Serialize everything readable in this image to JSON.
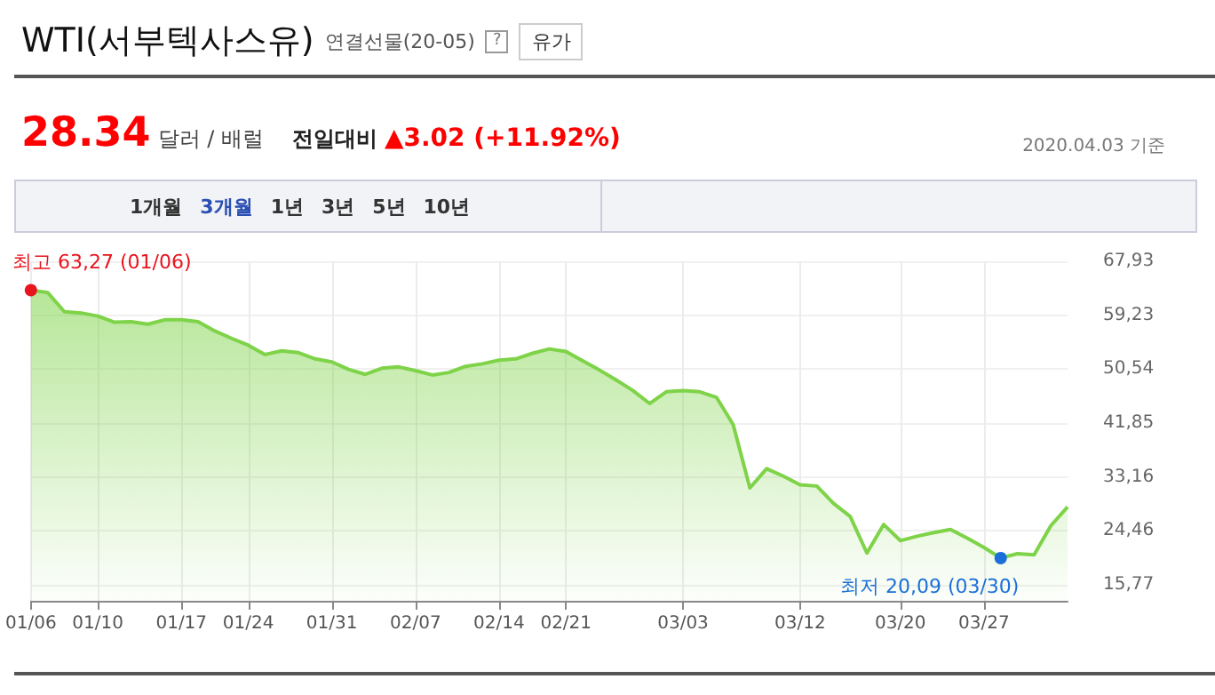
{
  "chart_data": {
    "type": "area",
    "title": "WTI(서부텍사스유)",
    "subtitle": "연결선물(20-05)",
    "categories": [
      "01/06",
      null,
      null,
      null,
      "01/10",
      null,
      null,
      null,
      null,
      "01/17",
      null,
      null,
      null,
      "01/24",
      null,
      null,
      null,
      null,
      "01/31",
      null,
      null,
      null,
      null,
      "02/07",
      null,
      null,
      null,
      null,
      "02/14",
      null,
      null,
      null,
      "02/21",
      null,
      null,
      null,
      null,
      null,
      null,
      "03/03",
      null,
      null,
      null,
      null,
      null,
      null,
      "03/12",
      null,
      null,
      null,
      null,
      null,
      "03/20",
      null,
      null,
      null,
      null,
      "03/27",
      null,
      null,
      null,
      null,
      null
    ],
    "series": [
      {
        "color": "#7ed348",
        "values": [
          63.27,
          62.9,
          59.8,
          59.6,
          59.1,
          58.1,
          58.2,
          57.8,
          58.5,
          58.5,
          58.2,
          56.7,
          55.5,
          54.4,
          52.9,
          53.5,
          53.2,
          52.2,
          51.7,
          50.5,
          49.7,
          50.7,
          50.9,
          50.3,
          49.6,
          50.0,
          51.0,
          51.4,
          52.0,
          52.2,
          53.1,
          53.8,
          53.4,
          51.9,
          50.4,
          48.8,
          47.1,
          45.0,
          46.9,
          47.1,
          46.9,
          46.0,
          41.6,
          31.4,
          34.5,
          33.3,
          31.9,
          31.7,
          28.9,
          26.8,
          20.9,
          25.5,
          22.9,
          23.6,
          24.2,
          24.7,
          23.3,
          21.8,
          20.09,
          20.8,
          20.6,
          25.3,
          28.34
        ]
      }
    ],
    "ylim": [
      13.2,
      67.93
    ],
    "yticks": [
      {
        "value": 15.77,
        "label": "15,77"
      },
      {
        "value": 24.46,
        "label": "24,46"
      },
      {
        "value": 33.16,
        "label": "33,16"
      },
      {
        "value": 41.85,
        "label": "41,85"
      },
      {
        "value": 50.54,
        "label": "50,54"
      },
      {
        "value": 59.23,
        "label": "59,23"
      },
      {
        "value": 67.93,
        "label": "67,93"
      }
    ],
    "grid": true,
    "marker": "none",
    "annotations": [
      "유가",
      "28.34",
      "달러 / 배럴",
      "전일대비",
      "▲3.02 (+11.92%)",
      "2020.04.03 기준",
      "1개월",
      "3개월",
      "1년",
      "3년",
      "5년",
      "10년",
      "?",
      "최저 20,09 (03/30)",
      {
        "text": "최고 63,27 (01/06)",
        "x": "01/06",
        "y": 63.27
      }
    ]
  }
}
